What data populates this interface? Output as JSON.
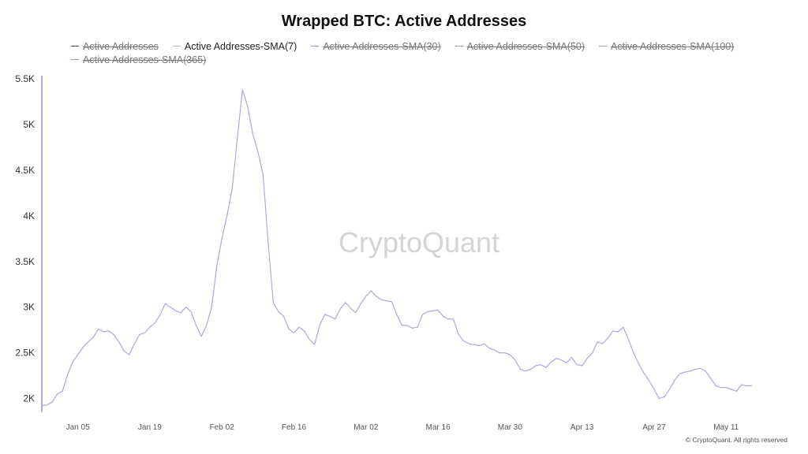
{
  "title": "Wrapped BTC: Active Addresses",
  "legend": {
    "row1": [
      {
        "label": "Active Addresses",
        "active": false,
        "style": "solid"
      },
      {
        "label": "Active Addresses-SMA(7)",
        "active": true,
        "style": "light"
      },
      {
        "label": "Active Addresses-SMA(30)",
        "active": false,
        "style": "dashed"
      },
      {
        "label": "Active Addresses-SMA(50)",
        "active": false,
        "style": "dashed"
      },
      {
        "label": "Active Addresses-SMA(100)",
        "active": false,
        "style": "dashed"
      }
    ],
    "row2": [
      {
        "label": "Active Addresses-SMA(365)",
        "active": false,
        "style": "dashed"
      }
    ]
  },
  "watermark": "CryptoQuant",
  "credit": "© CryptoQuant. All rights reserved",
  "colors": {
    "series": "#a9aadf",
    "axis": "#8f8fd0"
  },
  "chart_data": {
    "type": "line",
    "title": "Wrapped BTC: Active Addresses",
    "xlabel": "",
    "ylabel": "",
    "ylim": [
      1850,
      5500
    ],
    "yticks": [
      2000,
      2500,
      3000,
      3500,
      4000,
      4500,
      5000,
      5500
    ],
    "ytick_labels": [
      "2K",
      "2.5K",
      "3K",
      "3.5K",
      "4K",
      "4.5K",
      "5K",
      "5.5K"
    ],
    "x_start": "2024-12-29",
    "x_end": "2025-05-24",
    "xtick_labels": [
      "Jan 05",
      "Jan 19",
      "Feb 02",
      "Feb 16",
      "Mar 02",
      "Mar 16",
      "Mar 30",
      "Apr 13",
      "Apr 27",
      "May 11"
    ],
    "xticks": [
      "2025-01-05",
      "2025-01-19",
      "2025-02-02",
      "2025-02-16",
      "2025-03-02",
      "2025-03-16",
      "2025-03-30",
      "2025-04-13",
      "2025-04-27",
      "2025-05-11"
    ],
    "legend_position": "top",
    "grid": false,
    "series": [
      {
        "name": "Active Addresses-SMA(7)",
        "points": [
          [
            "2024-12-29",
            1920
          ],
          [
            "2024-12-30",
            1930
          ],
          [
            "2024-12-31",
            1960
          ],
          [
            "2025-01-01",
            2050
          ],
          [
            "2025-01-02",
            2080
          ],
          [
            "2025-01-03",
            2260
          ],
          [
            "2025-01-04",
            2400
          ],
          [
            "2025-01-05",
            2480
          ],
          [
            "2025-01-06",
            2560
          ],
          [
            "2025-01-07",
            2620
          ],
          [
            "2025-01-08",
            2670
          ],
          [
            "2025-01-09",
            2760
          ],
          [
            "2025-01-10",
            2730
          ],
          [
            "2025-01-11",
            2740
          ],
          [
            "2025-01-12",
            2700
          ],
          [
            "2025-01-13",
            2620
          ],
          [
            "2025-01-14",
            2520
          ],
          [
            "2025-01-15",
            2480
          ],
          [
            "2025-01-16",
            2600
          ],
          [
            "2025-01-17",
            2700
          ],
          [
            "2025-01-18",
            2720
          ],
          [
            "2025-01-19",
            2780
          ],
          [
            "2025-01-20",
            2830
          ],
          [
            "2025-01-21",
            2920
          ],
          [
            "2025-01-22",
            3040
          ],
          [
            "2025-01-23",
            3000
          ],
          [
            "2025-01-24",
            2960
          ],
          [
            "2025-01-25",
            2940
          ],
          [
            "2025-01-26",
            3000
          ],
          [
            "2025-01-27",
            2950
          ],
          [
            "2025-01-28",
            2800
          ],
          [
            "2025-01-29",
            2680
          ],
          [
            "2025-01-30",
            2800
          ],
          [
            "2025-01-31",
            3000
          ],
          [
            "2025-02-01",
            3450
          ],
          [
            "2025-02-02",
            3750
          ],
          [
            "2025-02-03",
            4000
          ],
          [
            "2025-02-04",
            4300
          ],
          [
            "2025-02-05",
            4850
          ],
          [
            "2025-02-06",
            5380
          ],
          [
            "2025-02-07",
            5200
          ],
          [
            "2025-02-08",
            4900
          ],
          [
            "2025-02-09",
            4700
          ],
          [
            "2025-02-10",
            4450
          ],
          [
            "2025-02-11",
            3700
          ],
          [
            "2025-02-12",
            3050
          ],
          [
            "2025-02-13",
            2950
          ],
          [
            "2025-02-14",
            2900
          ],
          [
            "2025-02-15",
            2760
          ],
          [
            "2025-02-16",
            2720
          ],
          [
            "2025-02-17",
            2780
          ],
          [
            "2025-02-18",
            2740
          ],
          [
            "2025-02-19",
            2650
          ],
          [
            "2025-02-20",
            2590
          ],
          [
            "2025-02-21",
            2800
          ],
          [
            "2025-02-22",
            2920
          ],
          [
            "2025-02-23",
            2900
          ],
          [
            "2025-02-24",
            2870
          ],
          [
            "2025-02-25",
            2980
          ],
          [
            "2025-02-26",
            3050
          ],
          [
            "2025-02-27",
            2990
          ],
          [
            "2025-02-28",
            2940
          ],
          [
            "2025-03-01",
            3040
          ],
          [
            "2025-03-02",
            3120
          ],
          [
            "2025-03-03",
            3180
          ],
          [
            "2025-03-04",
            3120
          ],
          [
            "2025-03-05",
            3080
          ],
          [
            "2025-03-06",
            3070
          ],
          [
            "2025-03-07",
            3060
          ],
          [
            "2025-03-08",
            2920
          ],
          [
            "2025-03-09",
            2800
          ],
          [
            "2025-03-10",
            2800
          ],
          [
            "2025-03-11",
            2770
          ],
          [
            "2025-03-12",
            2780
          ],
          [
            "2025-03-13",
            2920
          ],
          [
            "2025-03-14",
            2950
          ],
          [
            "2025-03-15",
            2960
          ],
          [
            "2025-03-16",
            2970
          ],
          [
            "2025-03-17",
            2900
          ],
          [
            "2025-03-18",
            2870
          ],
          [
            "2025-03-19",
            2870
          ],
          [
            "2025-03-20",
            2700
          ],
          [
            "2025-03-21",
            2630
          ],
          [
            "2025-03-22",
            2600
          ],
          [
            "2025-03-23",
            2590
          ],
          [
            "2025-03-24",
            2580
          ],
          [
            "2025-03-25",
            2600
          ],
          [
            "2025-03-26",
            2550
          ],
          [
            "2025-03-27",
            2530
          ],
          [
            "2025-03-28",
            2500
          ],
          [
            "2025-03-29",
            2500
          ],
          [
            "2025-03-30",
            2480
          ],
          [
            "2025-03-31",
            2420
          ],
          [
            "2025-04-01",
            2320
          ],
          [
            "2025-04-02",
            2300
          ],
          [
            "2025-04-03",
            2320
          ],
          [
            "2025-04-04",
            2360
          ],
          [
            "2025-04-05",
            2370
          ],
          [
            "2025-04-06",
            2340
          ],
          [
            "2025-04-07",
            2400
          ],
          [
            "2025-04-08",
            2440
          ],
          [
            "2025-04-09",
            2420
          ],
          [
            "2025-04-10",
            2390
          ],
          [
            "2025-04-11",
            2450
          ],
          [
            "2025-04-12",
            2370
          ],
          [
            "2025-04-13",
            2360
          ],
          [
            "2025-04-14",
            2440
          ],
          [
            "2025-04-15",
            2500
          ],
          [
            "2025-04-16",
            2620
          ],
          [
            "2025-04-17",
            2600
          ],
          [
            "2025-04-18",
            2660
          ],
          [
            "2025-04-19",
            2740
          ],
          [
            "2025-04-20",
            2730
          ],
          [
            "2025-04-21",
            2780
          ],
          [
            "2025-04-22",
            2650
          ],
          [
            "2025-04-23",
            2500
          ],
          [
            "2025-04-24",
            2380
          ],
          [
            "2025-04-25",
            2280
          ],
          [
            "2025-04-26",
            2200
          ],
          [
            "2025-04-27",
            2100
          ],
          [
            "2025-04-28",
            2000
          ],
          [
            "2025-04-29",
            2020
          ],
          [
            "2025-04-30",
            2100
          ],
          [
            "2025-05-01",
            2200
          ],
          [
            "2025-05-02",
            2270
          ],
          [
            "2025-05-03",
            2290
          ],
          [
            "2025-05-04",
            2300
          ],
          [
            "2025-05-05",
            2320
          ],
          [
            "2025-05-06",
            2330
          ],
          [
            "2025-05-07",
            2300
          ],
          [
            "2025-05-08",
            2220
          ],
          [
            "2025-05-09",
            2140
          ],
          [
            "2025-05-10",
            2120
          ],
          [
            "2025-05-11",
            2120
          ],
          [
            "2025-05-12",
            2100
          ],
          [
            "2025-05-13",
            2080
          ],
          [
            "2025-05-14",
            2150
          ],
          [
            "2025-05-15",
            2140
          ],
          [
            "2025-05-16",
            2140
          ]
        ]
      }
    ]
  }
}
